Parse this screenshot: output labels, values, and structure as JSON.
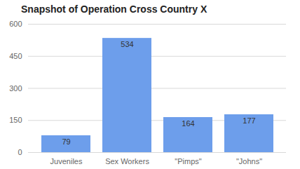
{
  "chart_data": {
    "type": "bar",
    "title": "Snapshot of Operation Cross Country X",
    "categories": [
      "Juveniles",
      "Sex Workers",
      "\"Pimps\"",
      "\"Johns\""
    ],
    "values": [
      79,
      534,
      164,
      177
    ],
    "color": "#6d9eeb",
    "ylim": [
      0,
      600
    ],
    "yticks": [
      0,
      150,
      300,
      450,
      600
    ],
    "grid": true,
    "data_labels": true
  }
}
